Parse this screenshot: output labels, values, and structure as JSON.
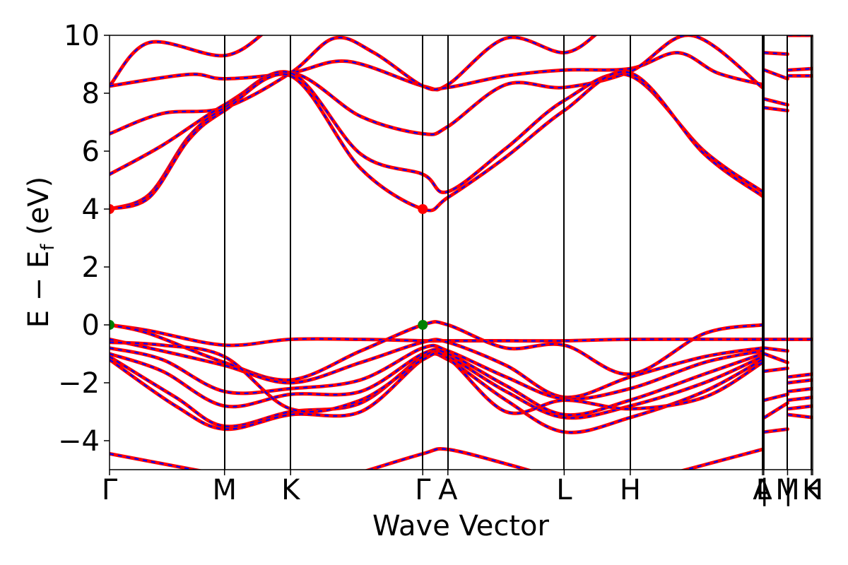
{
  "chart_data": {
    "type": "line",
    "title": "",
    "xlabel": "Wave Vector",
    "ylabel": "E − E",
    "ylabel_sub": "f",
    "ylabel_unit": " (eV)",
    "ylim": [
      -5,
      10
    ],
    "yticks": [
      -4,
      -2,
      0,
      2,
      4,
      6,
      8,
      10
    ],
    "ytick_labels": [
      "−4",
      "−2",
      "0",
      "2",
      "4",
      "6",
      "8",
      "10"
    ],
    "xlim": [
      0,
      5.32
    ],
    "kpoints": [
      {
        "label": "Γ",
        "x": 0.0
      },
      {
        "label": "M",
        "x": 0.87
      },
      {
        "label": "K",
        "x": 1.37
      },
      {
        "label": "Γ",
        "x": 2.37
      },
      {
        "label": "A",
        "x": 2.56
      },
      {
        "label": "L",
        "x": 3.44
      },
      {
        "label": "H",
        "x": 3.94
      },
      {
        "label": "A",
        "x": 4.94
      },
      {
        "label": "L",
        "x": 4.95
      },
      {
        "label": "|",
        "x": 4.955
      },
      {
        "label": "M",
        "x": 5.13
      },
      {
        "label": "|",
        "x": 5.135
      },
      {
        "label": "K",
        "x": 5.31
      },
      {
        "label": "H",
        "x": 5.32
      }
    ],
    "colors": {
      "dft": "#ff0000",
      "fit": "#0000ff",
      "cbm": "#ff0000",
      "vbm": "#008000",
      "axes": "#000000"
    },
    "series": [
      {
        "style": "red-solid-blue-dash",
        "segments": [
          [
            [
              0,
              8.25
            ],
            [
              0.3,
              9.75
            ],
            [
              0.87,
              9.3
            ],
            [
              1.2,
              10.2
            ]
          ],
          [
            [
              0,
              8.25
            ],
            [
              0.6,
              8.65
            ],
            [
              0.87,
              8.5
            ],
            [
              1.37,
              8.7
            ],
            [
              1.8,
              9.1
            ],
            [
              2.37,
              8.25
            ],
            [
              2.56,
              8.3
            ],
            [
              3.0,
              9.9
            ],
            [
              3.44,
              9.4
            ],
            [
              3.7,
              10.1
            ]
          ],
          [
            [
              0,
              6.6
            ],
            [
              0.4,
              7.3
            ],
            [
              0.87,
              7.5
            ],
            [
              1.37,
              8.7
            ],
            [
              1.7,
              9.9
            ],
            [
              2.0,
              9.4
            ],
            [
              2.37,
              8.25
            ],
            [
              2.56,
              8.2
            ],
            [
              3.0,
              8.6
            ],
            [
              3.44,
              8.8
            ],
            [
              3.94,
              8.85
            ],
            [
              4.3,
              9.4
            ],
            [
              4.6,
              8.7
            ],
            [
              4.94,
              8.3
            ]
          ],
          [
            [
              0,
              5.2
            ],
            [
              0.4,
              6.2
            ],
            [
              0.87,
              7.6
            ],
            [
              1.37,
              8.7
            ],
            [
              1.9,
              7.2
            ],
            [
              2.37,
              6.6
            ],
            [
              2.56,
              6.85
            ],
            [
              3.0,
              8.3
            ],
            [
              3.44,
              8.2
            ],
            [
              3.94,
              8.75
            ],
            [
              4.4,
              10.0
            ],
            [
              4.94,
              8.2
            ]
          ],
          [
            [
              0,
              4.0
            ],
            [
              0.3,
              4.5
            ],
            [
              0.6,
              6.5
            ],
            [
              0.87,
              7.5
            ],
            [
              1.37,
              8.7
            ],
            [
              1.9,
              5.9
            ],
            [
              2.37,
              5.2
            ],
            [
              2.56,
              4.6
            ],
            [
              3.0,
              6.1
            ],
            [
              3.44,
              7.75
            ],
            [
              3.94,
              8.6
            ],
            [
              4.5,
              6.0
            ],
            [
              4.94,
              4.6
            ]
          ],
          [
            [
              0,
              4.0
            ],
            [
              0.3,
              4.4
            ],
            [
              0.6,
              6.4
            ],
            [
              0.87,
              7.4
            ],
            [
              1.37,
              8.6
            ],
            [
              1.9,
              5.4
            ],
            [
              2.37,
              4.0
            ],
            [
              2.56,
              4.4
            ],
            [
              3.0,
              5.8
            ],
            [
              3.44,
              7.4
            ],
            [
              3.94,
              8.7
            ],
            [
              4.5,
              5.9
            ],
            [
              4.94,
              4.45
            ]
          ],
          [
            [
              0,
              -4.45
            ],
            [
              0.87,
              -5.2
            ]
          ],
          [
            [
              1.9,
              -5.1
            ],
            [
              2.37,
              -4.45
            ],
            [
              2.56,
              -4.3
            ],
            [
              3.0,
              -4.8
            ],
            [
              3.3,
              -5.2
            ]
          ],
          [
            [
              4.2,
              -5.2
            ],
            [
              4.94,
              -4.3
            ]
          ],
          [
            [
              0,
              0.0
            ],
            [
              0.3,
              -0.2
            ],
            [
              0.87,
              -0.7
            ],
            [
              1.37,
              -0.5
            ],
            [
              1.9,
              -0.5
            ],
            [
              2.37,
              -0.55
            ],
            [
              2.56,
              -0.55
            ],
            [
              3.0,
              -0.55
            ],
            [
              3.44,
              -0.55
            ],
            [
              3.94,
              -0.5
            ],
            [
              4.94,
              -0.5
            ],
            [
              5.32,
              -0.5
            ]
          ],
          [
            [
              0,
              0.0
            ],
            [
              0.3,
              -0.3
            ],
            [
              0.87,
              -1.3
            ],
            [
              1.37,
              -1.9
            ],
            [
              1.9,
              -0.9
            ],
            [
              2.37,
              0.0
            ],
            [
              2.56,
              0.0
            ],
            [
              3.0,
              -0.8
            ],
            [
              3.44,
              -0.7
            ],
            [
              3.94,
              -1.7
            ],
            [
              4.5,
              -0.3
            ],
            [
              4.94,
              0.0
            ]
          ],
          [
            [
              0,
              -0.5
            ],
            [
              0.4,
              -0.9
            ],
            [
              0.87,
              -1.4
            ],
            [
              1.37,
              -2.0
            ],
            [
              1.9,
              -1.3
            ],
            [
              2.37,
              -0.6
            ],
            [
              2.56,
              -0.6
            ],
            [
              3.0,
              -1.4
            ],
            [
              3.44,
              -2.5
            ],
            [
              3.94,
              -1.8
            ],
            [
              4.5,
              -1.1
            ],
            [
              4.94,
              -0.8
            ]
          ],
          [
            [
              0,
              -0.8
            ],
            [
              0.4,
              -1.2
            ],
            [
              0.87,
              -2.3
            ],
            [
              1.37,
              -2.2
            ],
            [
              1.9,
              -1.9
            ],
            [
              2.37,
              -0.8
            ],
            [
              2.56,
              -0.9
            ],
            [
              3.0,
              -1.8
            ],
            [
              3.44,
              -2.55
            ],
            [
              3.94,
              -2.2
            ],
            [
              4.5,
              -1.3
            ],
            [
              4.94,
              -0.9
            ]
          ],
          [
            [
              0,
              -1.0
            ],
            [
              0.4,
              -1.6
            ],
            [
              0.87,
              -2.8
            ],
            [
              1.37,
              -2.4
            ],
            [
              1.9,
              -2.3
            ],
            [
              2.37,
              -1.0
            ],
            [
              2.56,
              -1.0
            ],
            [
              3.0,
              -2.1
            ],
            [
              3.44,
              -3.1
            ],
            [
              3.94,
              -2.6
            ],
            [
              4.5,
              -1.7
            ],
            [
              4.94,
              -1.0
            ]
          ],
          [
            [
              0,
              -1.1
            ],
            [
              0.5,
              -2.5
            ],
            [
              0.87,
              -3.5
            ],
            [
              1.37,
              -3.0
            ],
            [
              1.9,
              -2.7
            ],
            [
              2.37,
              -1.1
            ],
            [
              2.56,
              -1.1
            ],
            [
              3.0,
              -2.3
            ],
            [
              3.44,
              -3.2
            ],
            [
              3.94,
              -2.8
            ],
            [
              4.5,
              -2.0
            ],
            [
              4.94,
              -1.1
            ]
          ],
          [
            [
              0,
              -1.2
            ],
            [
              0.5,
              -2.8
            ],
            [
              0.87,
              -3.6
            ],
            [
              1.37,
              -3.1
            ],
            [
              1.9,
              -3.0
            ],
            [
              2.37,
              -1.2
            ],
            [
              2.56,
              -1.2
            ],
            [
              3.0,
              -2.6
            ],
            [
              3.44,
              -3.7
            ],
            [
              3.94,
              -3.2
            ],
            [
              4.5,
              -2.3
            ],
            [
              4.94,
              -1.2
            ]
          ],
          [
            [
              0,
              -0.6
            ],
            [
              0.4,
              -0.7
            ],
            [
              0.87,
              -1.1
            ],
            [
              1.37,
              -2.9
            ],
            [
              1.9,
              -2.6
            ],
            [
              2.37,
              -1.2
            ],
            [
              2.56,
              -1.15
            ],
            [
              3.0,
              -3.0
            ],
            [
              3.44,
              -2.6
            ],
            [
              3.94,
              -2.9
            ],
            [
              4.5,
              -2.5
            ],
            [
              4.94,
              -1.3
            ]
          ]
        ]
      },
      {
        "style": "short",
        "segments": [
          [
            [
              4.955,
              9.4
            ],
            [
              5.13,
              9.35
            ]
          ],
          [
            [
              4.955,
              8.8
            ],
            [
              5.13,
              8.5
            ]
          ],
          [
            [
              4.955,
              7.8
            ],
            [
              5.13,
              7.6
            ]
          ],
          [
            [
              4.955,
              7.5
            ],
            [
              5.13,
              7.4
            ]
          ],
          [
            [
              5.135,
              8.8
            ],
            [
              5.32,
              8.85
            ]
          ],
          [
            [
              5.135,
              8.6
            ],
            [
              5.32,
              8.6
            ]
          ],
          [
            [
              5.135,
              10.0
            ],
            [
              5.32,
              10.0
            ]
          ],
          [
            [
              4.955,
              -0.5
            ],
            [
              5.32,
              -0.5
            ]
          ],
          [
            [
              4.955,
              -0.8
            ],
            [
              5.13,
              -0.9
            ]
          ],
          [
            [
              4.955,
              -1.0
            ],
            [
              5.13,
              -1.3
            ]
          ],
          [
            [
              4.955,
              -1.6
            ],
            [
              5.13,
              -1.5
            ]
          ],
          [
            [
              4.955,
              -2.6
            ],
            [
              5.13,
              -2.4
            ]
          ],
          [
            [
              4.955,
              -3.2
            ],
            [
              5.13,
              -2.7
            ]
          ],
          [
            [
              4.955,
              -3.7
            ],
            [
              5.13,
              -3.6
            ]
          ],
          [
            [
              5.135,
              -1.8
            ],
            [
              5.32,
              -1.7
            ]
          ],
          [
            [
              5.135,
              -2.0
            ],
            [
              5.32,
              -1.9
            ]
          ],
          [
            [
              5.135,
              -2.3
            ],
            [
              5.32,
              -2.2
            ]
          ],
          [
            [
              5.135,
              -2.6
            ],
            [
              5.32,
              -2.5
            ]
          ],
          [
            [
              5.135,
              -2.9
            ],
            [
              5.32,
              -2.8
            ]
          ],
          [
            [
              5.135,
              -3.1
            ],
            [
              5.32,
              -3.2
            ]
          ]
        ]
      }
    ],
    "markers": [
      {
        "kind": "cbm",
        "x": 0.0,
        "y": 4.0
      },
      {
        "kind": "cbm",
        "x": 2.37,
        "y": 4.0
      },
      {
        "kind": "vbm",
        "x": 0.0,
        "y": 0.0
      },
      {
        "kind": "vbm",
        "x": 2.37,
        "y": 0.0
      }
    ]
  }
}
